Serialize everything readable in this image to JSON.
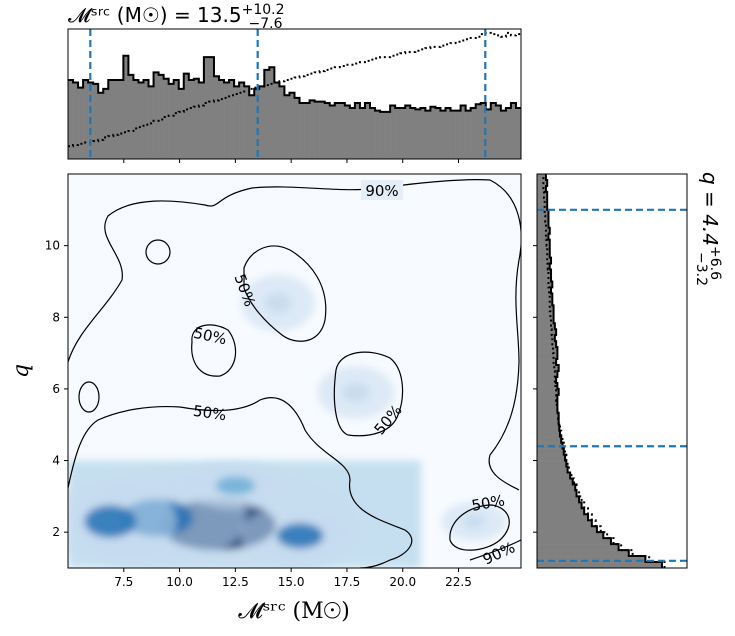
{
  "titles": {
    "top_panel": "𝓜ˢʳᶜ (M☉) = 13.5 +10.2 −7.6",
    "top_main": "𝓜ˢʳᶜ (M☉) = 13.5",
    "top_sup": "+10.2",
    "top_sub": "−7.6",
    "right_main": "q = 4.4",
    "right_sup": "+6.6",
    "right_sub": "−3.2"
  },
  "chart_data": [
    {
      "type": "heatmap",
      "panel": "joint",
      "xlabel": "𝓜ˢʳᶜ (M☉)",
      "ylabel": "q",
      "xlim": [
        5.0,
        25.3
      ],
      "ylim": [
        1.0,
        12.0
      ],
      "xticks": [
        "7.5",
        "10.0",
        "12.5",
        "15.0",
        "17.5",
        "20.0",
        "22.5"
      ],
      "yticks": [
        "2",
        "4",
        "6",
        "8",
        "10"
      ],
      "density_peaks": [
        {
          "x": 11.7,
          "y": 2.2,
          "w": 1.0
        },
        {
          "x": 9.0,
          "y": 2.4,
          "w": 0.75
        },
        {
          "x": 6.9,
          "y": 2.3,
          "w": 0.6
        },
        {
          "x": 15.4,
          "y": 1.9,
          "w": 0.6
        },
        {
          "x": 12.5,
          "y": 3.3,
          "w": 0.45
        },
        {
          "x": 17.9,
          "y": 5.9,
          "w": 0.18
        },
        {
          "x": 14.4,
          "y": 8.4,
          "w": 0.15
        },
        {
          "x": 23.2,
          "y": 2.3,
          "w": 0.14
        }
      ],
      "contour_labels": [
        "90%",
        "50%",
        "50%",
        "50%",
        "50%",
        "50%",
        "90%"
      ],
      "colormap": [
        "#f7fbff",
        "#c6dbef",
        "#6baed6",
        "#2171b5",
        "#08306b"
      ]
    },
    {
      "type": "bar",
      "panel": "marginal-top",
      "quantity": "𝓜ˢʳᶜ",
      "xlim": [
        5.0,
        25.3
      ],
      "series": [
        {
          "values": [
            0.62,
            0.6,
            0.56,
            0.62,
            0.6,
            0.59,
            0.52,
            0.55,
            0.62,
            0.62,
            0.62,
            0.81,
            0.66,
            0.62,
            0.6,
            0.62,
            0.57,
            0.68,
            0.66,
            0.63,
            0.59,
            0.62,
            0.55,
            0.67,
            0.62,
            0.63,
            0.6,
            0.8,
            0.8,
            0.65,
            0.62,
            0.6,
            0.62,
            0.57,
            0.6,
            0.57,
            0.5,
            0.55,
            0.57,
            0.7,
            0.72,
            0.6,
            0.57,
            0.5,
            0.52,
            0.48,
            0.44,
            0.44,
            0.46,
            0.45,
            0.45,
            0.44,
            0.42,
            0.44,
            0.44,
            0.42,
            0.4,
            0.44,
            0.4,
            0.44,
            0.4,
            0.38,
            0.37,
            0.37,
            0.42,
            0.4,
            0.4,
            0.42,
            0.4,
            0.39,
            0.4,
            0.38,
            0.41,
            0.4,
            0.38,
            0.4,
            0.38,
            0.38,
            0.42,
            0.38,
            0.4,
            0.43,
            0.44,
            0.39,
            0.44,
            0.42,
            0.38,
            0.4,
            0.44,
            0.4
          ]
        },
        {
          "values": [
            0.1,
            0.11,
            0.12,
            0.13,
            0.13,
            0.14,
            0.15,
            0.17,
            0.18,
            0.19,
            0.2,
            0.21,
            0.22,
            0.24,
            0.25,
            0.27,
            0.28,
            0.3,
            0.31,
            0.33,
            0.34,
            0.36,
            0.37,
            0.39,
            0.4,
            0.41,
            0.42,
            0.44,
            0.45,
            0.46,
            0.47,
            0.48,
            0.5,
            0.51,
            0.52,
            0.53,
            0.55,
            0.56,
            0.57,
            0.58,
            0.59,
            0.6,
            0.61,
            0.62,
            0.63,
            0.64,
            0.65,
            0.66,
            0.67,
            0.68,
            0.69,
            0.7,
            0.71,
            0.72,
            0.73,
            0.74,
            0.74,
            0.75,
            0.76,
            0.77,
            0.78,
            0.79,
            0.8,
            0.8,
            0.81,
            0.82,
            0.83,
            0.84,
            0.84,
            0.85,
            0.86,
            0.87,
            0.88,
            0.88,
            0.89,
            0.9,
            0.91,
            0.92,
            0.93,
            0.94,
            0.95,
            0.96,
            0.98,
            0.99,
            0.98,
            0.97,
            0.96,
            0.99,
            0.97,
            0.98
          ]
        }
      ],
      "quantiles": [
        6.0,
        13.5,
        23.7
      ]
    },
    {
      "type": "bar",
      "panel": "marginal-right",
      "quantity": "q",
      "ylim": [
        1.0,
        12.0
      ],
      "series": [
        {
          "values": [
            0.98,
            0.85,
            0.72,
            0.64,
            0.58,
            0.52,
            0.47,
            0.43,
            0.4,
            0.37,
            0.35,
            0.33,
            0.31,
            0.3,
            0.28,
            0.26,
            0.24,
            0.23,
            0.22,
            0.21,
            0.2,
            0.19,
            0.18,
            0.175,
            0.17,
            0.17,
            0.16,
            0.16,
            0.16,
            0.17,
            0.16,
            0.15,
            0.16,
            0.17,
            0.15,
            0.16,
            0.16,
            0.15,
            0.14,
            0.15,
            0.14,
            0.13,
            0.13,
            0.13,
            0.12,
            0.12,
            0.11,
            0.12,
            0.11,
            0.11,
            0.1,
            0.11,
            0.1,
            0.1,
            0.1,
            0.09,
            0.1,
            0.09,
            0.09,
            0.09,
            0.08,
            0.08,
            0.08,
            0.07,
            0.08,
            0.07
          ]
        },
        {
          "values": [
            1.0,
            0.88,
            0.75,
            0.66,
            0.6,
            0.55,
            0.5,
            0.46,
            0.43,
            0.4,
            0.37,
            0.35,
            0.33,
            0.31,
            0.29,
            0.27,
            0.25,
            0.24,
            0.23,
            0.22,
            0.21,
            0.2,
            0.19,
            0.18,
            0.17,
            0.165,
            0.16,
            0.155,
            0.15,
            0.15,
            0.145,
            0.14,
            0.14,
            0.135,
            0.13,
            0.13,
            0.125,
            0.12,
            0.12,
            0.115,
            0.11,
            0.11,
            0.105,
            0.1,
            0.1,
            0.1,
            0.095,
            0.09,
            0.09,
            0.09,
            0.085,
            0.08,
            0.08,
            0.08,
            0.075,
            0.07,
            0.07,
            0.07,
            0.065,
            0.06,
            0.06,
            0.06,
            0.055,
            0.05,
            0.05,
            0.05
          ]
        }
      ],
      "quantiles": [
        1.2,
        4.4,
        11.0
      ]
    }
  ]
}
